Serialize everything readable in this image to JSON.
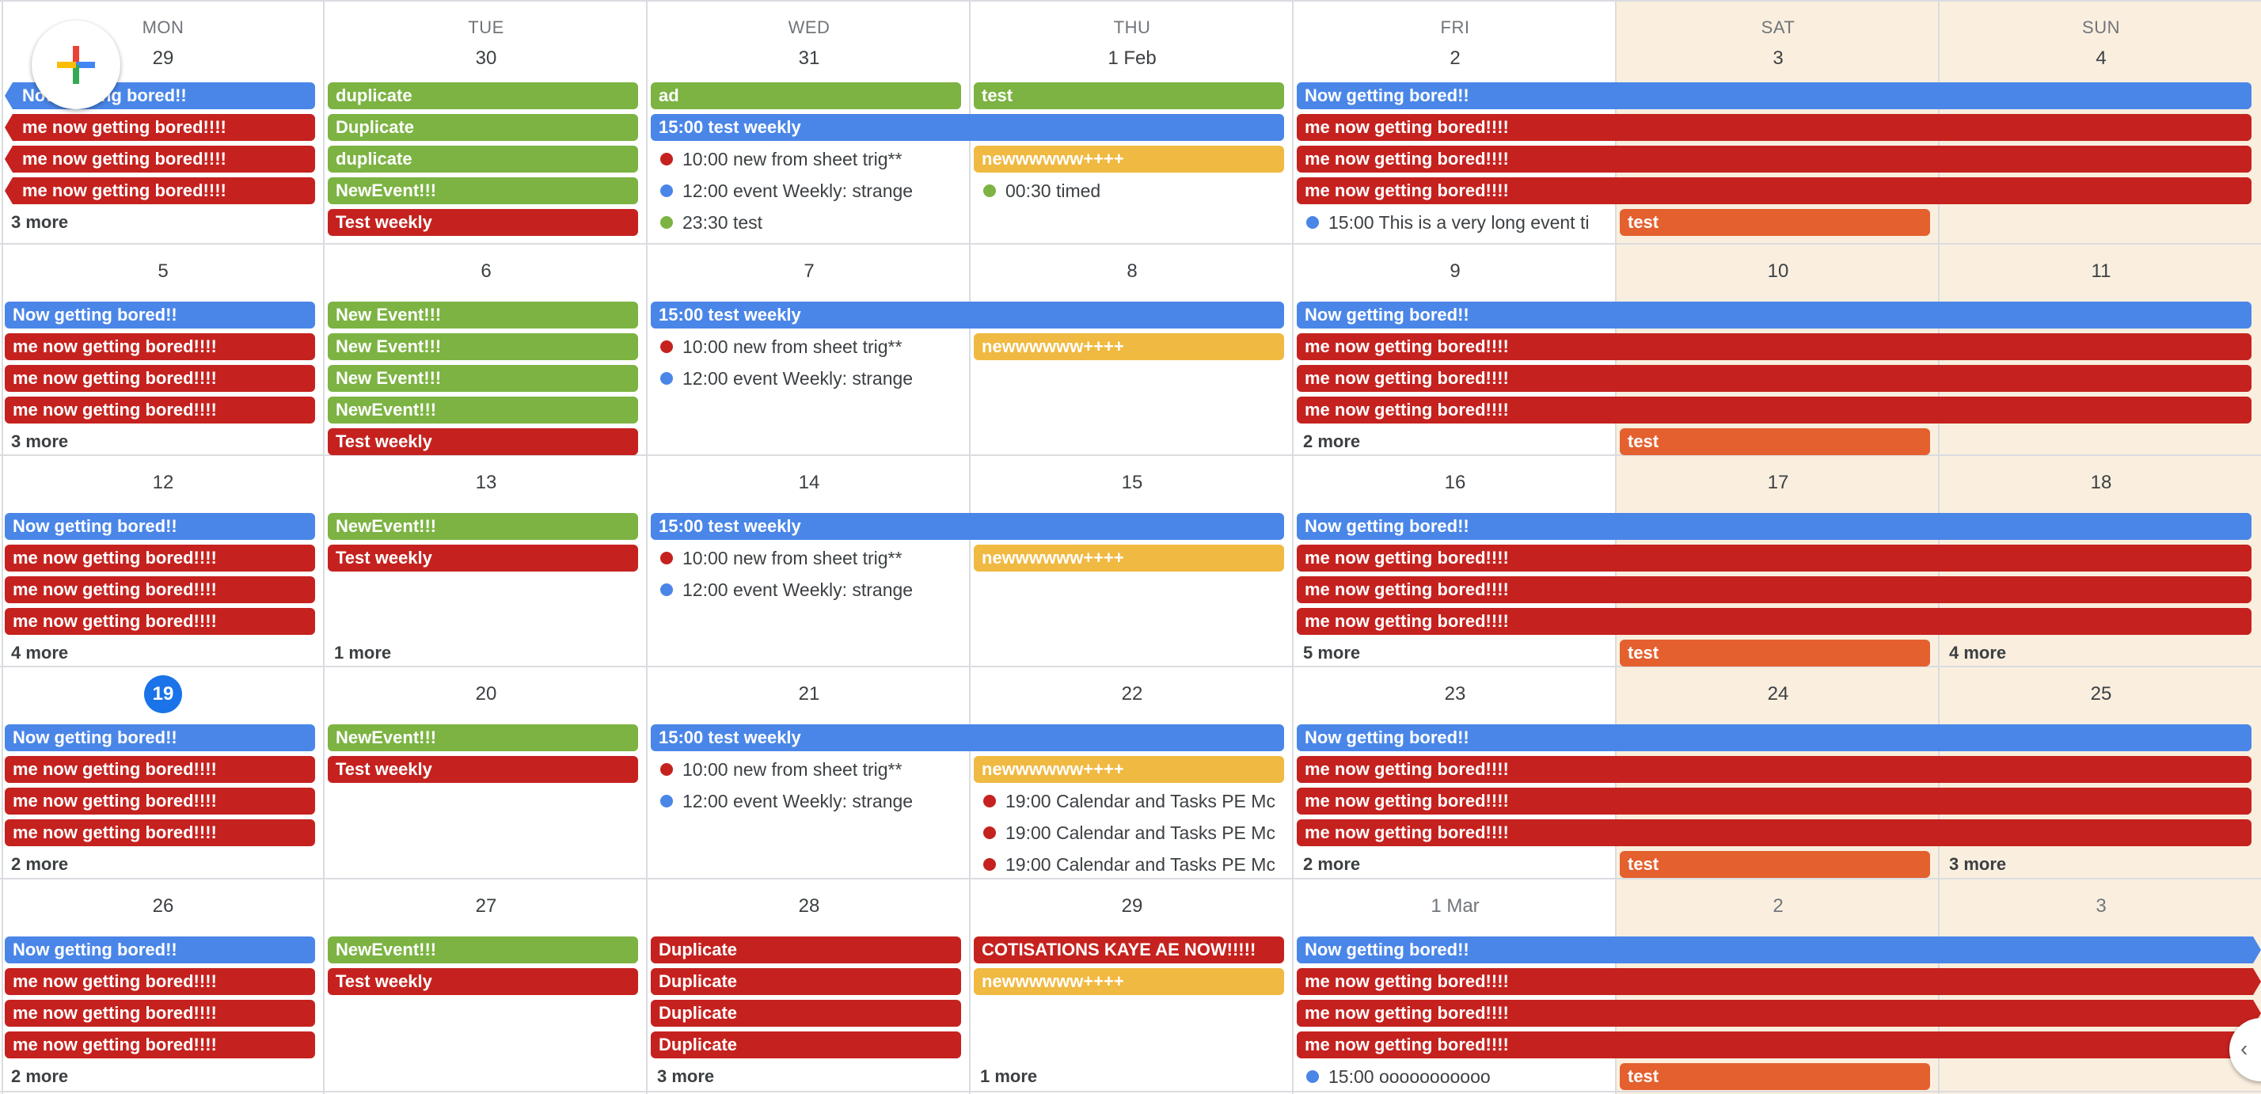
{
  "colors": {
    "blue": "#4a86e8",
    "red": "#c5221f",
    "green": "#7cb342",
    "yellow": "#f0b941",
    "orange": "#e4602f",
    "today": "#1a73e8",
    "weekend_bg": "#faefdf"
  },
  "fab": {
    "icon": "plus-icon"
  },
  "side_toggle": {
    "icon": "chevron-left-icon",
    "glyph": "‹"
  },
  "day_names": [
    "MON",
    "TUE",
    "WED",
    "THU",
    "FRI",
    "SAT",
    "SUN"
  ],
  "weeks": [
    {
      "days": [
        {
          "label": "29"
        },
        {
          "label": "30"
        },
        {
          "label": "31"
        },
        {
          "label": "1 Feb"
        },
        {
          "label": "2"
        },
        {
          "label": "3"
        },
        {
          "label": "4"
        }
      ],
      "bars": [
        {
          "title": "Now getting bored!!",
          "color": "blue",
          "start": 0,
          "span": 1,
          "row": 0,
          "cont_left": true
        },
        {
          "title": "me now getting bored!!!!",
          "color": "red",
          "start": 0,
          "span": 1,
          "row": 1,
          "cont_left": true
        },
        {
          "title": "me now getting bored!!!!",
          "color": "red",
          "start": 0,
          "span": 1,
          "row": 2,
          "cont_left": true
        },
        {
          "title": "me now getting bored!!!!",
          "color": "red",
          "start": 0,
          "span": 1,
          "row": 3,
          "cont_left": true
        },
        {
          "title": "duplicate",
          "color": "green",
          "start": 1,
          "span": 1,
          "row": 0
        },
        {
          "title": "Duplicate",
          "color": "green",
          "start": 1,
          "span": 1,
          "row": 1
        },
        {
          "title": "duplicate",
          "color": "green",
          "start": 1,
          "span": 1,
          "row": 2
        },
        {
          "title": "NewEvent!!!",
          "color": "green",
          "start": 1,
          "span": 1,
          "row": 3
        },
        {
          "title": "Test weekly",
          "color": "red",
          "start": 1,
          "span": 1,
          "row": 4
        },
        {
          "title": "ad",
          "color": "green",
          "start": 2,
          "span": 1,
          "row": 0
        },
        {
          "title": "test",
          "color": "green",
          "start": 3,
          "span": 1,
          "row": 0
        },
        {
          "title": "15:00 test weekly",
          "color": "blue",
          "start": 2,
          "span": 2,
          "row": 1
        },
        {
          "title": "newwwwww++++",
          "color": "yellow",
          "start": 3,
          "span": 1,
          "row": 2
        },
        {
          "title": "Now getting bored!!",
          "color": "blue",
          "start": 4,
          "span": 3,
          "row": 0
        },
        {
          "title": "me now getting bored!!!!",
          "color": "red",
          "start": 4,
          "span": 3,
          "row": 1
        },
        {
          "title": "me now getting bored!!!!",
          "color": "red",
          "start": 4,
          "span": 3,
          "row": 2
        },
        {
          "title": "me now getting bored!!!!",
          "color": "red",
          "start": 4,
          "span": 3,
          "row": 3
        },
        {
          "title": "test",
          "color": "orange",
          "start": 5,
          "span": 1,
          "row": 4
        }
      ],
      "timed": [
        {
          "time": "10:00",
          "title": "new from sheet trig**",
          "color": "red",
          "col": 2,
          "row": 2
        },
        {
          "time": "12:00",
          "title": "event Weekly: strange",
          "color": "blue",
          "col": 2,
          "row": 3
        },
        {
          "time": "23:30",
          "title": "test",
          "color": "green",
          "col": 2,
          "row": 4
        },
        {
          "time": "00:30",
          "title": "timed",
          "color": "green",
          "col": 3,
          "row": 3
        },
        {
          "time": "15:00",
          "title": "This is a very long event ti",
          "color": "blue",
          "col": 4,
          "row": 4
        }
      ],
      "more": [
        {
          "label": "3 more",
          "col": 0,
          "row": 4
        }
      ]
    },
    {
      "days": [
        {
          "label": "5"
        },
        {
          "label": "6"
        },
        {
          "label": "7"
        },
        {
          "label": "8"
        },
        {
          "label": "9"
        },
        {
          "label": "10"
        },
        {
          "label": "11"
        }
      ],
      "bars": [
        {
          "title": "Now getting bored!!",
          "color": "blue",
          "start": 0,
          "span": 1,
          "row": 0
        },
        {
          "title": "me now getting bored!!!!",
          "color": "red",
          "start": 0,
          "span": 1,
          "row": 1
        },
        {
          "title": "me now getting bored!!!!",
          "color": "red",
          "start": 0,
          "span": 1,
          "row": 2
        },
        {
          "title": "me now getting bored!!!!",
          "color": "red",
          "start": 0,
          "span": 1,
          "row": 3
        },
        {
          "title": "New Event!!!",
          "color": "green",
          "start": 1,
          "span": 1,
          "row": 0
        },
        {
          "title": "New Event!!!",
          "color": "green",
          "start": 1,
          "span": 1,
          "row": 1
        },
        {
          "title": "New Event!!!",
          "color": "green",
          "start": 1,
          "span": 1,
          "row": 2
        },
        {
          "title": "NewEvent!!!",
          "color": "green",
          "start": 1,
          "span": 1,
          "row": 3
        },
        {
          "title": "Test weekly",
          "color": "red",
          "start": 1,
          "span": 1,
          "row": 4
        },
        {
          "title": "15:00 test weekly",
          "color": "blue",
          "start": 2,
          "span": 2,
          "row": 0
        },
        {
          "title": "newwwwww++++",
          "color": "yellow",
          "start": 3,
          "span": 1,
          "row": 1
        },
        {
          "title": "Now getting bored!!",
          "color": "blue",
          "start": 4,
          "span": 3,
          "row": 0
        },
        {
          "title": "me now getting bored!!!!",
          "color": "red",
          "start": 4,
          "span": 3,
          "row": 1
        },
        {
          "title": "me now getting bored!!!!",
          "color": "red",
          "start": 4,
          "span": 3,
          "row": 2
        },
        {
          "title": "me now getting bored!!!!",
          "color": "red",
          "start": 4,
          "span": 3,
          "row": 3
        },
        {
          "title": "test",
          "color": "orange",
          "start": 5,
          "span": 1,
          "row": 4
        }
      ],
      "timed": [
        {
          "time": "10:00",
          "title": "new from sheet trig**",
          "color": "red",
          "col": 2,
          "row": 1
        },
        {
          "time": "12:00",
          "title": "event Weekly: strange",
          "color": "blue",
          "col": 2,
          "row": 2
        }
      ],
      "more": [
        {
          "label": "3 more",
          "col": 0,
          "row": 4
        },
        {
          "label": "2 more",
          "col": 4,
          "row": 4
        }
      ]
    },
    {
      "days": [
        {
          "label": "12"
        },
        {
          "label": "13"
        },
        {
          "label": "14"
        },
        {
          "label": "15"
        },
        {
          "label": "16"
        },
        {
          "label": "17"
        },
        {
          "label": "18"
        }
      ],
      "bars": [
        {
          "title": "Now getting bored!!",
          "color": "blue",
          "start": 0,
          "span": 1,
          "row": 0
        },
        {
          "title": "me now getting bored!!!!",
          "color": "red",
          "start": 0,
          "span": 1,
          "row": 1
        },
        {
          "title": "me now getting bored!!!!",
          "color": "red",
          "start": 0,
          "span": 1,
          "row": 2
        },
        {
          "title": "me now getting bored!!!!",
          "color": "red",
          "start": 0,
          "span": 1,
          "row": 3
        },
        {
          "title": "NewEvent!!!",
          "color": "green",
          "start": 1,
          "span": 1,
          "row": 0
        },
        {
          "title": "Test weekly",
          "color": "red",
          "start": 1,
          "span": 1,
          "row": 1
        },
        {
          "title": "15:00 test weekly",
          "color": "blue",
          "start": 2,
          "span": 2,
          "row": 0
        },
        {
          "title": "newwwwww++++",
          "color": "yellow",
          "start": 3,
          "span": 1,
          "row": 1
        },
        {
          "title": "Now getting bored!!",
          "color": "blue",
          "start": 4,
          "span": 3,
          "row": 0
        },
        {
          "title": "me now getting bored!!!!",
          "color": "red",
          "start": 4,
          "span": 3,
          "row": 1
        },
        {
          "title": "me now getting bored!!!!",
          "color": "red",
          "start": 4,
          "span": 3,
          "row": 2
        },
        {
          "title": "me now getting bored!!!!",
          "color": "red",
          "start": 4,
          "span": 3,
          "row": 3
        },
        {
          "title": "test",
          "color": "orange",
          "start": 5,
          "span": 1,
          "row": 4
        }
      ],
      "timed": [
        {
          "time": "10:00",
          "title": "new from sheet trig**",
          "color": "red",
          "col": 2,
          "row": 1
        },
        {
          "time": "12:00",
          "title": "event Weekly: strange",
          "color": "blue",
          "col": 2,
          "row": 2
        }
      ],
      "more": [
        {
          "label": "4 more",
          "col": 0,
          "row": 4
        },
        {
          "label": "1 more",
          "col": 1,
          "row": 4
        },
        {
          "label": "5 more",
          "col": 4,
          "row": 4
        },
        {
          "label": "4 more",
          "col": 6,
          "row": 4
        }
      ]
    },
    {
      "days": [
        {
          "label": "19",
          "today": true
        },
        {
          "label": "20"
        },
        {
          "label": "21"
        },
        {
          "label": "22"
        },
        {
          "label": "23"
        },
        {
          "label": "24"
        },
        {
          "label": "25"
        }
      ],
      "bars": [
        {
          "title": "Now getting bored!!",
          "color": "blue",
          "start": 0,
          "span": 1,
          "row": 0
        },
        {
          "title": "me now getting bored!!!!",
          "color": "red",
          "start": 0,
          "span": 1,
          "row": 1
        },
        {
          "title": "me now getting bored!!!!",
          "color": "red",
          "start": 0,
          "span": 1,
          "row": 2
        },
        {
          "title": "me now getting bored!!!!",
          "color": "red",
          "start": 0,
          "span": 1,
          "row": 3
        },
        {
          "title": "NewEvent!!!",
          "color": "green",
          "start": 1,
          "span": 1,
          "row": 0
        },
        {
          "title": "Test weekly",
          "color": "red",
          "start": 1,
          "span": 1,
          "row": 1
        },
        {
          "title": "15:00 test weekly",
          "color": "blue",
          "start": 2,
          "span": 2,
          "row": 0
        },
        {
          "title": "newwwwww++++",
          "color": "yellow",
          "start": 3,
          "span": 1,
          "row": 1
        },
        {
          "title": "Now getting bored!!",
          "color": "blue",
          "start": 4,
          "span": 3,
          "row": 0
        },
        {
          "title": "me now getting bored!!!!",
          "color": "red",
          "start": 4,
          "span": 3,
          "row": 1
        },
        {
          "title": "me now getting bored!!!!",
          "color": "red",
          "start": 4,
          "span": 3,
          "row": 2
        },
        {
          "title": "me now getting bored!!!!",
          "color": "red",
          "start": 4,
          "span": 3,
          "row": 3
        },
        {
          "title": "test",
          "color": "orange",
          "start": 5,
          "span": 1,
          "row": 4
        }
      ],
      "timed": [
        {
          "time": "10:00",
          "title": "new from sheet trig**",
          "color": "red",
          "col": 2,
          "row": 1
        },
        {
          "time": "12:00",
          "title": "event Weekly: strange",
          "color": "blue",
          "col": 2,
          "row": 2
        },
        {
          "time": "19:00",
          "title": "Calendar and Tasks PE Mc",
          "color": "red",
          "col": 3,
          "row": 2
        },
        {
          "time": "19:00",
          "title": "Calendar and Tasks PE Mc",
          "color": "red",
          "col": 3,
          "row": 3
        },
        {
          "time": "19:00",
          "title": "Calendar and Tasks PE Mc",
          "color": "red",
          "col": 3,
          "row": 4
        }
      ],
      "more": [
        {
          "label": "2 more",
          "col": 0,
          "row": 4
        },
        {
          "label": "2 more",
          "col": 4,
          "row": 4
        },
        {
          "label": "3 more",
          "col": 6,
          "row": 4
        }
      ]
    },
    {
      "days": [
        {
          "label": "26"
        },
        {
          "label": "27"
        },
        {
          "label": "28"
        },
        {
          "label": "29"
        },
        {
          "label": "1 Mar",
          "other": true
        },
        {
          "label": "2",
          "other": true
        },
        {
          "label": "3",
          "other": true
        }
      ],
      "bars": [
        {
          "title": "Now getting bored!!",
          "color": "blue",
          "start": 0,
          "span": 1,
          "row": 0
        },
        {
          "title": "me now getting bored!!!!",
          "color": "red",
          "start": 0,
          "span": 1,
          "row": 1
        },
        {
          "title": "me now getting bored!!!!",
          "color": "red",
          "start": 0,
          "span": 1,
          "row": 2
        },
        {
          "title": "me now getting bored!!!!",
          "color": "red",
          "start": 0,
          "span": 1,
          "row": 3
        },
        {
          "title": "NewEvent!!!",
          "color": "green",
          "start": 1,
          "span": 1,
          "row": 0
        },
        {
          "title": "Test weekly",
          "color": "red",
          "start": 1,
          "span": 1,
          "row": 1
        },
        {
          "title": "Duplicate",
          "color": "red",
          "start": 2,
          "span": 1,
          "row": 0
        },
        {
          "title": "Duplicate",
          "color": "red",
          "start": 2,
          "span": 1,
          "row": 1
        },
        {
          "title": "Duplicate",
          "color": "red",
          "start": 2,
          "span": 1,
          "row": 2
        },
        {
          "title": "Duplicate",
          "color": "red",
          "start": 2,
          "span": 1,
          "row": 3
        },
        {
          "title": "COTISATIONS KAYE AE NOW!!!!!",
          "color": "red",
          "start": 3,
          "span": 1,
          "row": 0
        },
        {
          "title": "newwwwww++++",
          "color": "yellow",
          "start": 3,
          "span": 1,
          "row": 1
        },
        {
          "title": "Now getting bored!!",
          "color": "blue",
          "start": 4,
          "span": 3,
          "row": 0,
          "cont_right": true
        },
        {
          "title": "me now getting bored!!!!",
          "color": "red",
          "start": 4,
          "span": 3,
          "row": 1,
          "cont_right": true
        },
        {
          "title": "me now getting bored!!!!",
          "color": "red",
          "start": 4,
          "span": 3,
          "row": 2,
          "cont_right": true
        },
        {
          "title": "me now getting bored!!!!",
          "color": "red",
          "start": 4,
          "span": 3,
          "row": 3,
          "cont_right": true
        },
        {
          "title": "test",
          "color": "orange",
          "start": 5,
          "span": 1,
          "row": 4
        }
      ],
      "timed": [
        {
          "time": "15:00",
          "title": "ooooooooooo",
          "color": "blue",
          "col": 4,
          "row": 4
        }
      ],
      "more": [
        {
          "label": "2 more",
          "col": 0,
          "row": 4
        },
        {
          "label": "3 more",
          "col": 2,
          "row": 4
        },
        {
          "label": "1 more",
          "col": 3,
          "row": 4
        }
      ]
    }
  ]
}
